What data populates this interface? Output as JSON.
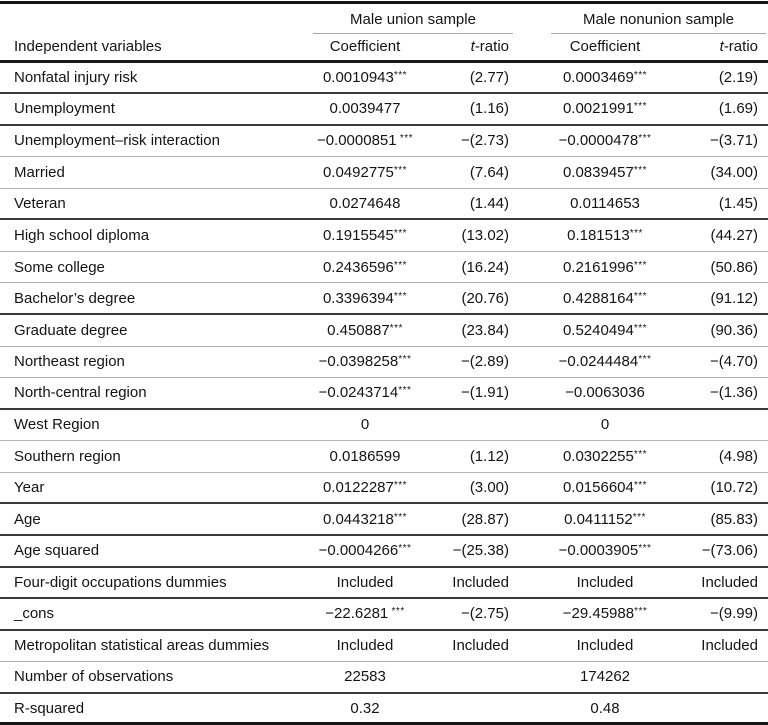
{
  "table": {
    "independent_variables_header": "Independent variables",
    "group_headers": {
      "union": "Male union sample",
      "nonunion": "Male nonunion sample"
    },
    "sub_headers": {
      "coefficient": "Coefficient",
      "t_italic": "t",
      "t_rest": "-ratio"
    },
    "rows": [
      {
        "label": "Nonfatal injury risk",
        "c1": "0.0010943",
        "s1": "***",
        "t1": "(2.77)",
        "c2": "0.0003469",
        "s2": "***",
        "t2": "(2.19)",
        "rule": "dark"
      },
      {
        "label": "Unemployment",
        "c1": "0.0039477",
        "s1": "",
        "t1": "(1.16)",
        "c2": "0.0021991",
        "s2": "***",
        "t2": "(1.69)",
        "rule": "dark"
      },
      {
        "label": "Unemployment–risk interaction",
        "c1": "−0.0000851",
        "s1": " ***",
        "t1": "−(2.73)",
        "c2": "−0.0000478",
        "s2": "***",
        "t2": "−(3.71)",
        "rule": "light"
      },
      {
        "label": "Married",
        "c1": "0.0492775",
        "s1": "***",
        "t1": "(7.64)",
        "c2": "0.0839457",
        "s2": "***",
        "t2": "(34.00)",
        "rule": "light"
      },
      {
        "label": "Veteran",
        "c1": "0.0274648",
        "s1": "",
        "t1": "(1.44)",
        "c2": "0.0114653",
        "s2": "",
        "t2": "(1.45)",
        "rule": "dark"
      },
      {
        "label": "High school diploma",
        "c1": "0.1915545",
        "s1": "***",
        "t1": "(13.02)",
        "c2": "0.181513",
        "s2": "***",
        "t2": "(44.27)",
        "rule": "light"
      },
      {
        "label": "Some college",
        "c1": "0.2436596",
        "s1": "***",
        "t1": "(16.24)",
        "c2": "0.2161996",
        "s2": "***",
        "t2": "(50.86)",
        "rule": "light"
      },
      {
        "label": "Bachelor’s degree",
        "c1": "0.3396394",
        "s1": "***",
        "t1": "(20.76)",
        "c2": "0.4288164",
        "s2": "***",
        "t2": "(91.12)",
        "rule": "dark"
      },
      {
        "label": "Graduate degree",
        "c1": "0.450887",
        "s1": "***",
        "t1": "(23.84)",
        "c2": "0.5240494",
        "s2": "***",
        "t2": "(90.36)",
        "rule": "light"
      },
      {
        "label": "Northeast region",
        "c1": "−0.0398258",
        "s1": "***",
        "t1": "−(2.89)",
        "c2": "−0.0244484",
        "s2": "***",
        "t2": "−(4.70)",
        "rule": "light"
      },
      {
        "label": "North-central region",
        "c1": "−0.0243714",
        "s1": "***",
        "t1": "−(1.91)",
        "c2": "−0.0063036",
        "s2": "",
        "t2": "−(1.36)",
        "rule": "dark"
      },
      {
        "label": "West Region",
        "c1": "0",
        "s1": "",
        "t1": "",
        "c2": "0",
        "s2": "",
        "t2": "",
        "rule": "light"
      },
      {
        "label": "Southern region",
        "c1": "0.0186599",
        "s1": "",
        "t1": "(1.12)",
        "c2": "0.0302255",
        "s2": "***",
        "t2": "(4.98)",
        "rule": "light"
      },
      {
        "label": "Year",
        "c1": "0.0122287",
        "s1": "***",
        "t1": "(3.00)",
        "c2": "0.0156604",
        "s2": "***",
        "t2": "(10.72)",
        "rule": "dark"
      },
      {
        "label": "Age",
        "c1": "0.0443218",
        "s1": "***",
        "t1": "(28.87)",
        "c2": "0.0411152",
        "s2": "***",
        "t2": "(85.83)",
        "rule": "dark"
      },
      {
        "label": "Age squared",
        "c1": "−0.0004266",
        "s1": "***",
        "t1": "−(25.38)",
        "c2": "−0.0003905",
        "s2": "***",
        "t2": "−(73.06)",
        "rule": "dark"
      },
      {
        "label": "Four-digit occupations dummies",
        "c1": "Included",
        "s1": "",
        "t1": "Included",
        "c2": "Included",
        "s2": "",
        "t2": "Included",
        "rule": "dark"
      },
      {
        "label": "_cons",
        "c1": "−22.6281",
        "s1": " ***",
        "t1": "−(2.75)",
        "c2": "−29.45988",
        "s2": "***",
        "t2": "−(9.99)",
        "rule": "dark"
      },
      {
        "label": "Metropolitan statistical areas dummies",
        "c1": "Included",
        "s1": "",
        "t1": "Included",
        "c2": "Included",
        "s2": "",
        "t2": "Included",
        "rule": "light"
      },
      {
        "label": "Number of observations",
        "c1": "22583",
        "s1": "",
        "t1": "",
        "c2": "174262",
        "s2": "",
        "t2": "",
        "rule": "dark"
      },
      {
        "label": "R-squared",
        "c1": "0.32",
        "s1": "",
        "t1": "",
        "c2": "0.48",
        "s2": "",
        "t2": "",
        "rule": "bottom"
      }
    ]
  }
}
